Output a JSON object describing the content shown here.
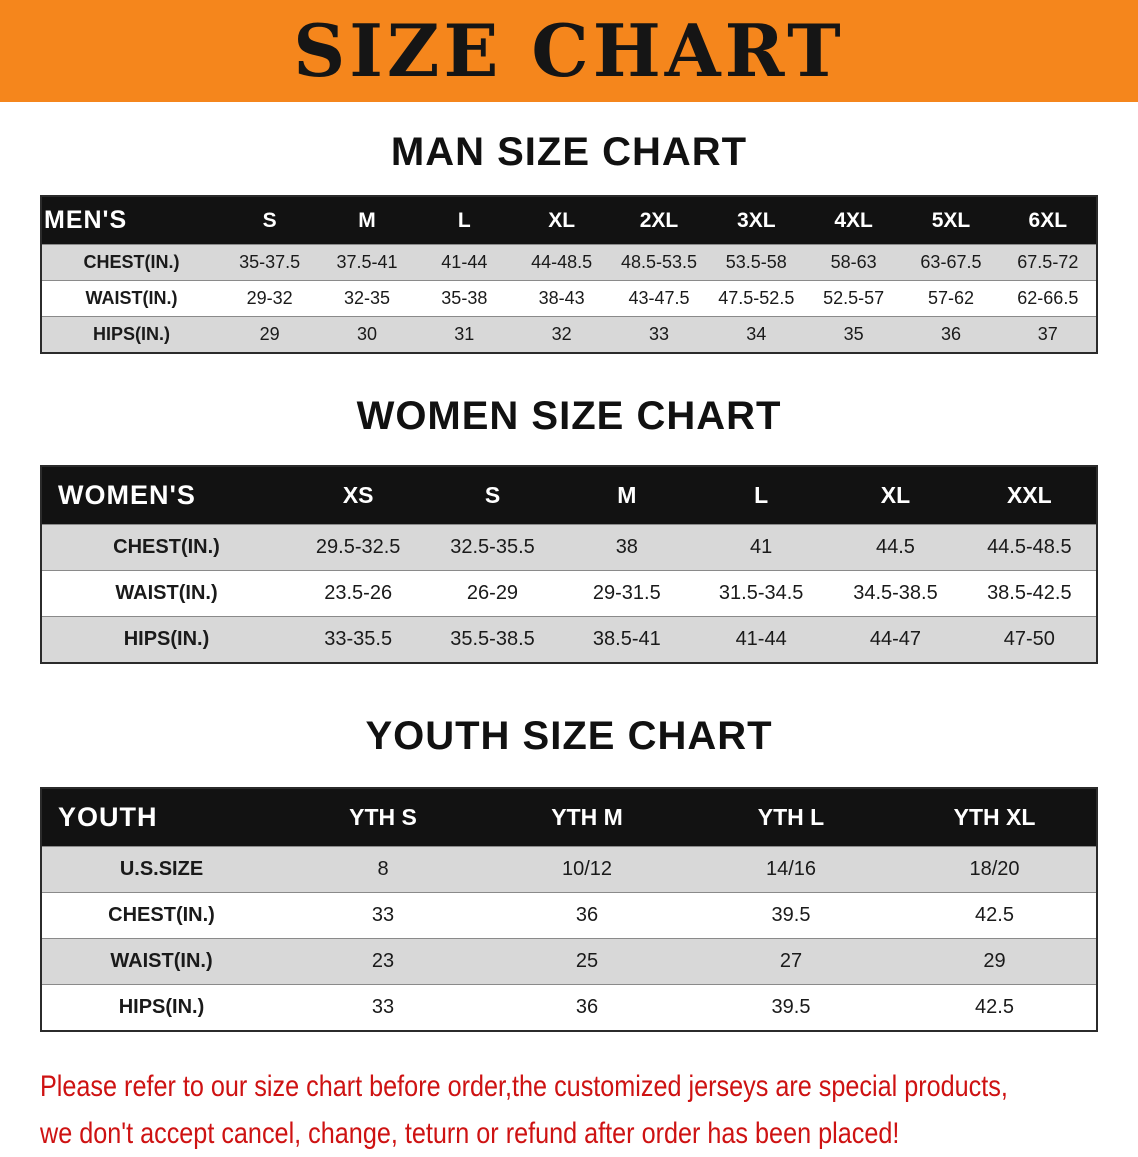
{
  "banner": {
    "title": "SIZE CHART",
    "bg_color": "#F5861C"
  },
  "sections": [
    {
      "heading": "MAN SIZE CHART",
      "table": {
        "header": [
          "MEN'S",
          "S",
          "M",
          "L",
          "XL",
          "2XL",
          "3XL",
          "4XL",
          "5XL",
          "6XL"
        ],
        "rows": [
          [
            "CHEST(IN.)",
            "35-37.5",
            "37.5-41",
            "41-44",
            "44-48.5",
            "48.5-53.5",
            "53.5-58",
            "58-63",
            "63-67.5",
            "67.5-72"
          ],
          [
            "WAIST(IN.)",
            "29-32",
            "32-35",
            "35-38",
            "38-43",
            "43-47.5",
            "47.5-52.5",
            "52.5-57",
            "57-62",
            "62-66.5"
          ],
          [
            "HIPS(IN.)",
            "29",
            "30",
            "31",
            "32",
            "33",
            "34",
            "35",
            "36",
            "37"
          ]
        ]
      }
    },
    {
      "heading": "WOMEN SIZE CHART",
      "table": {
        "header": [
          "WOMEN'S",
          "XS",
          "S",
          "M",
          "L",
          "XL",
          "XXL"
        ],
        "rows": [
          [
            "CHEST(IN.)",
            "29.5-32.5",
            "32.5-35.5",
            "38",
            "41",
            "44.5",
            "44.5-48.5"
          ],
          [
            "WAIST(IN.)",
            "23.5-26",
            "26-29",
            "29-31.5",
            "31.5-34.5",
            "34.5-38.5",
            "38.5-42.5"
          ],
          [
            "HIPS(IN.)",
            "33-35.5",
            "35.5-38.5",
            "38.5-41",
            "41-44",
            "44-47",
            "47-50"
          ]
        ]
      }
    },
    {
      "heading": "YOUTH SIZE CHART",
      "table": {
        "header": [
          "YOUTH",
          "YTH S",
          "YTH M",
          "YTH L",
          "YTH XL"
        ],
        "rows": [
          [
            "U.S.SIZE",
            "8",
            "10/12",
            "14/16",
            "18/20"
          ],
          [
            "CHEST(IN.)",
            "33",
            "36",
            "39.5",
            "42.5"
          ],
          [
            "WAIST(IN.)",
            "23",
            "25",
            "27",
            "29"
          ],
          [
            "HIPS(IN.)",
            "33",
            "36",
            "39.5",
            "42.5"
          ]
        ]
      }
    }
  ],
  "disclaimer": {
    "text_color": "#CE1212",
    "lines": [
      "Please refer to our size chart before order,the customized jerseys are special products,",
      "we don't accept cancel, change, teturn or refund after order has been placed!"
    ]
  },
  "colors": {
    "banner_bg": "#F5861C",
    "table_header_bg": "#121212",
    "table_row_shade": "#D8D8D8",
    "disclaimer_red": "#CE1212"
  }
}
